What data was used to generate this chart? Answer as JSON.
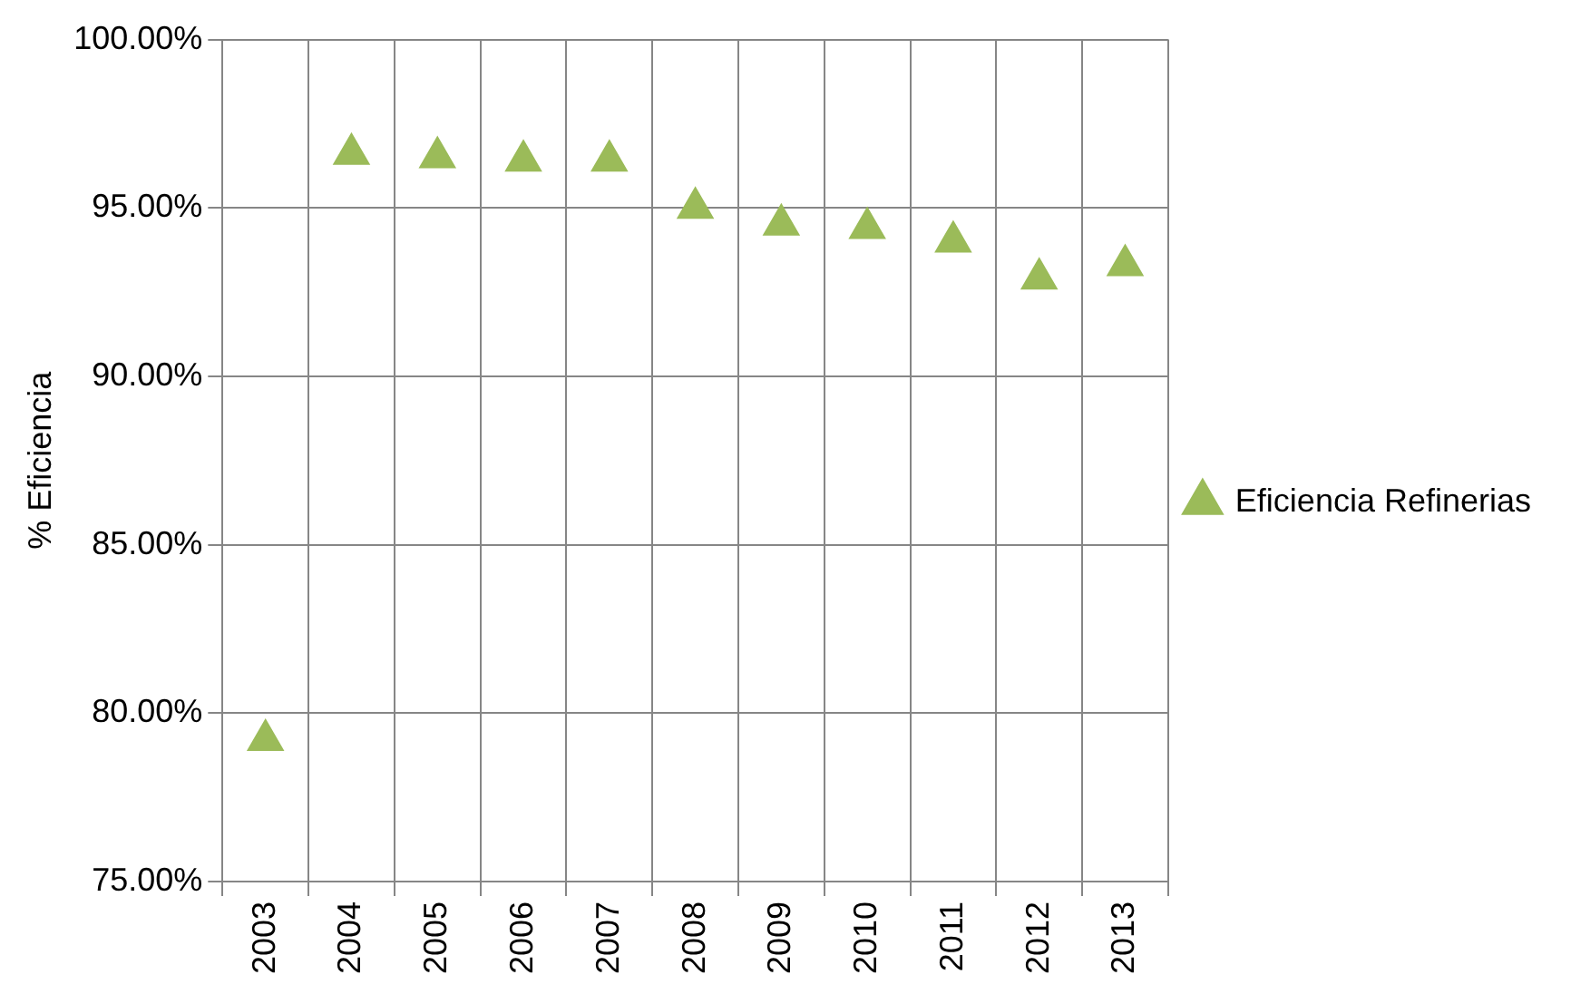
{
  "chart_data": {
    "type": "scatter",
    "ylabel": "% Eficiencia",
    "categories": [
      "2003",
      "2004",
      "2005",
      "2006",
      "2007",
      "2008",
      "2009",
      "2010",
      "2011",
      "2012",
      "2013"
    ],
    "series": [
      {
        "name": "Eficiencia Refinerias",
        "color": "#9bbb59",
        "values": [
          79.2,
          96.6,
          96.5,
          96.4,
          96.4,
          95.0,
          94.5,
          94.4,
          94.0,
          92.9,
          93.3
        ]
      }
    ],
    "ylim": [
      75,
      100
    ],
    "yticks": [
      {
        "value": 75,
        "label": "75.00%"
      },
      {
        "value": 80,
        "label": "80.00%"
      },
      {
        "value": 85,
        "label": "85.00%"
      },
      {
        "value": 90,
        "label": "90.00%"
      },
      {
        "value": 95,
        "label": "95.00%"
      },
      {
        "value": 100,
        "label": "100.00%"
      }
    ],
    "grid": true,
    "legend": "right",
    "marker": "triangle"
  }
}
